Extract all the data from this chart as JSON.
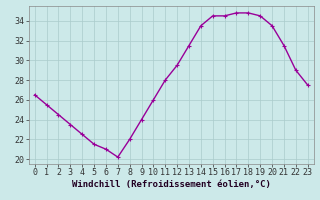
{
  "hours": [
    0,
    1,
    2,
    3,
    4,
    5,
    6,
    7,
    8,
    9,
    10,
    11,
    12,
    13,
    14,
    15,
    16,
    17,
    18,
    19,
    20,
    21,
    22,
    23
  ],
  "values": [
    26.5,
    25.5,
    24.5,
    23.5,
    22.5,
    21.5,
    21.0,
    20.2,
    22.0,
    24.0,
    26.0,
    28.0,
    29.5,
    31.5,
    33.5,
    34.5,
    34.5,
    34.8,
    34.8,
    34.5,
    33.5,
    31.5,
    29.0,
    27.5
  ],
  "line_color": "#990099",
  "marker": "+",
  "markersize": 3,
  "linewidth": 1.0,
  "bg_color": "#cce9e9",
  "grid_color": "#aacccc",
  "xlabel": "Windchill (Refroidissement éolien,°C)",
  "xlabel_fontsize": 6.5,
  "tick_fontsize": 6,
  "ylim": [
    19.5,
    35.5
  ],
  "xlim": [
    -0.5,
    23.5
  ],
  "yticks": [
    20,
    22,
    24,
    26,
    28,
    30,
    32,
    34
  ],
  "xticks": [
    0,
    1,
    2,
    3,
    4,
    5,
    6,
    7,
    8,
    9,
    10,
    11,
    12,
    13,
    14,
    15,
    16,
    17,
    18,
    19,
    20,
    21,
    22,
    23
  ]
}
